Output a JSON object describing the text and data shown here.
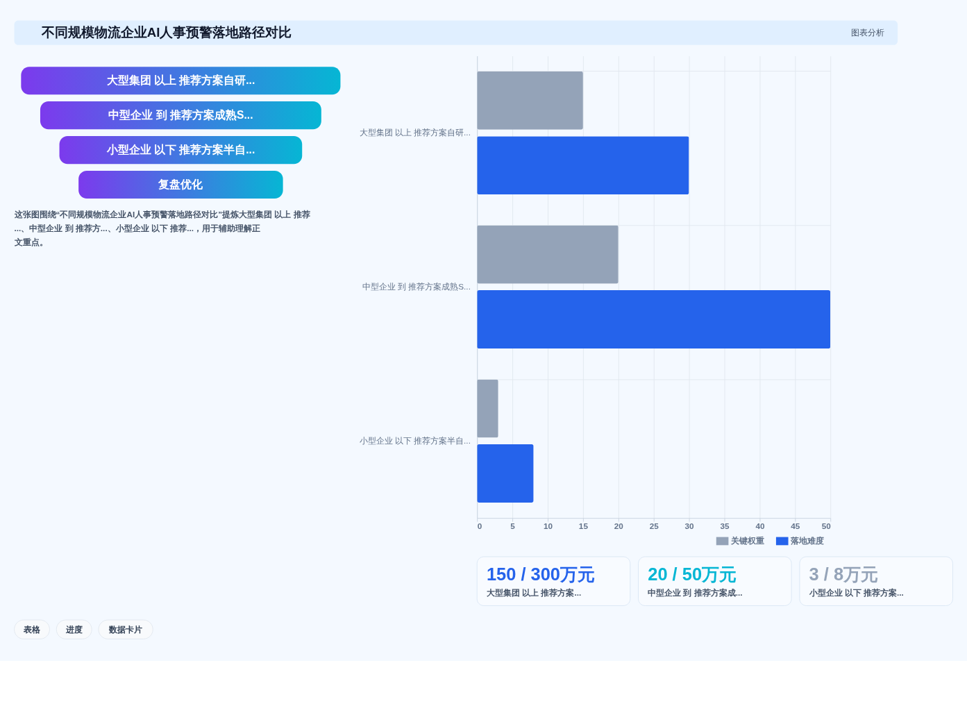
{
  "chart_data": [
    {
      "type": "other",
      "title": "不同规模物流企业AI人事预警落地路径对比",
      "subtitle": "图表分析",
      "categories": [
        "大型集团 以上 推荐方案自研...",
        "中型企业 到 推荐方案成熟S...",
        "小型企业 以下 推荐方案半自...",
        "复盘优化"
      ],
      "annotations": [
        "这张图围绕“不同规模物流企业AI人事预警落地路径对比”提炼大型集团 以上 推荐...、中型企业 到 推荐方...、小型企业 以下 推荐...，用于辅助理解正文重点。",
        "表格",
        "进度",
        "数据卡片"
      ]
    },
    {
      "type": "bar",
      "orientation": "horizontal",
      "categories": [
        "大型集团 以上 推荐方案自研...",
        "中型企业 到 推荐方案成熟S...",
        "小型企业 以下 推荐方案半自..."
      ],
      "series": [
        {
          "name": "关键权重",
          "color": "#94a3b8",
          "values": [
            15,
            20,
            3
          ]
        },
        {
          "name": "落地难度",
          "color": "#2563eb",
          "values": [
            30,
            50,
            8
          ]
        }
      ],
      "xlim": [
        0,
        50
      ],
      "xticks": [
        0,
        5,
        10,
        15,
        20,
        25,
        30,
        35,
        40,
        45,
        50
      ],
      "grid": true,
      "legend": "bottom"
    },
    {
      "type": "other",
      "annotations": [
        "150 / 300万元",
        "大型集团 以上 推荐方案...",
        "20 / 50万元",
        "中型企业 到 推荐方案成...",
        "3 / 8万元",
        "小型企业 以下 推荐方案..."
      ],
      "colors": [
        "#2563eb",
        "#06b6d4",
        "#94a3b8"
      ]
    }
  ]
}
